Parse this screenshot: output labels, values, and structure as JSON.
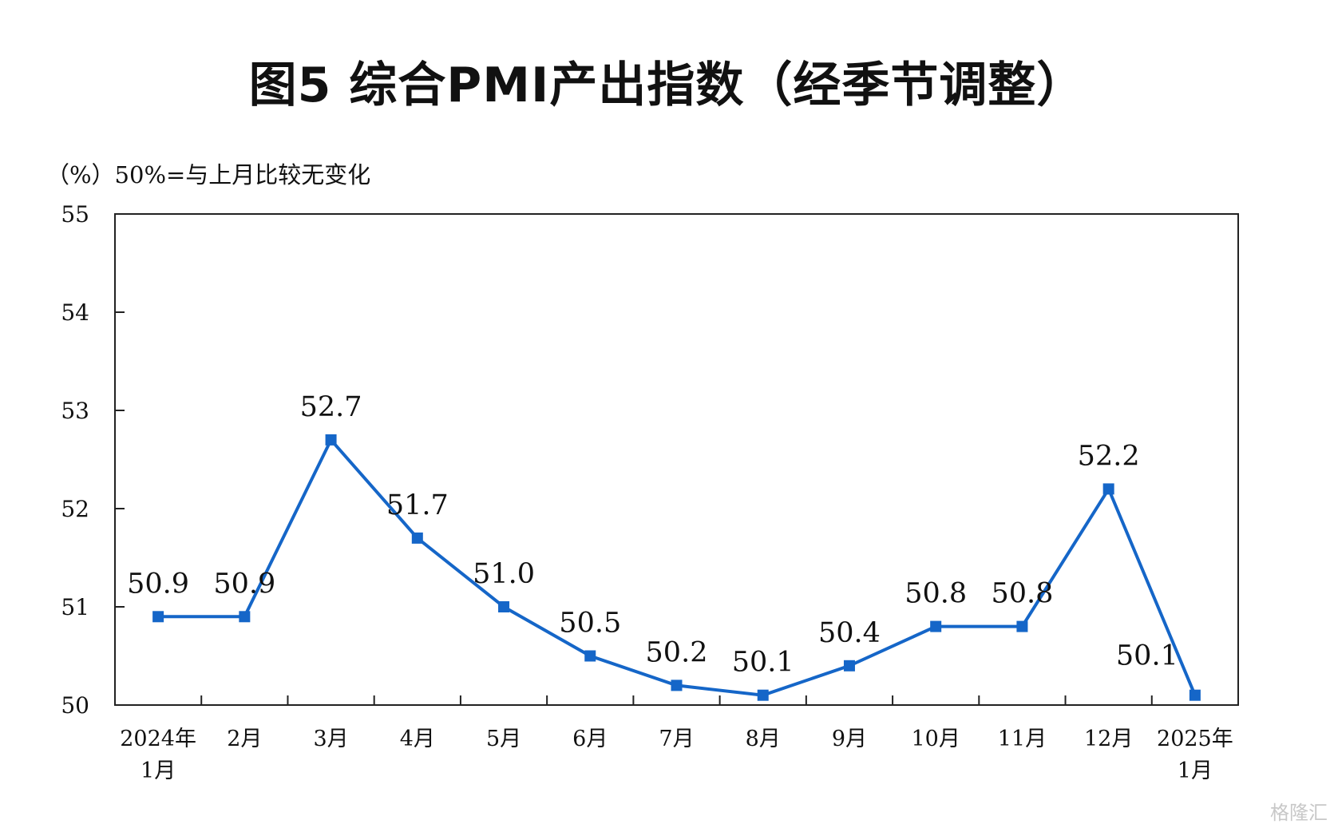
{
  "title": "图5  综合PMI产出指数（经季节调整）",
  "y_unit_note": "（%）50%=与上月比较无变化",
  "watermark": "格隆汇",
  "chart_data": {
    "type": "line",
    "title": "图5  综合PMI产出指数（经季节调整）",
    "ylabel": "（%）50%=与上月比较无变化",
    "xlabel": "",
    "ylim": [
      50,
      55
    ],
    "yticks": [
      50,
      51,
      52,
      53,
      54,
      55
    ],
    "categories": [
      [
        "2024年",
        "1月"
      ],
      [
        "2月"
      ],
      [
        "3月"
      ],
      [
        "4月"
      ],
      [
        "5月"
      ],
      [
        "6月"
      ],
      [
        "7月"
      ],
      [
        "8月"
      ],
      [
        "9月"
      ],
      [
        "10月"
      ],
      [
        "11月"
      ],
      [
        "12月"
      ],
      [
        "2025年",
        "1月"
      ]
    ],
    "values": [
      50.9,
      50.9,
      52.7,
      51.7,
      51.0,
      50.5,
      50.2,
      50.1,
      50.4,
      50.8,
      50.8,
      52.2,
      50.1
    ],
    "data_labels": [
      "50.9",
      "50.9",
      "52.7",
      "51.7",
      "51.0",
      "50.5",
      "50.2",
      "50.1",
      "50.4",
      "50.8",
      "50.8",
      "52.2",
      "50.1"
    ],
    "line_color": "#1566C8",
    "marker": "square",
    "grid": false,
    "legend": "none"
  }
}
